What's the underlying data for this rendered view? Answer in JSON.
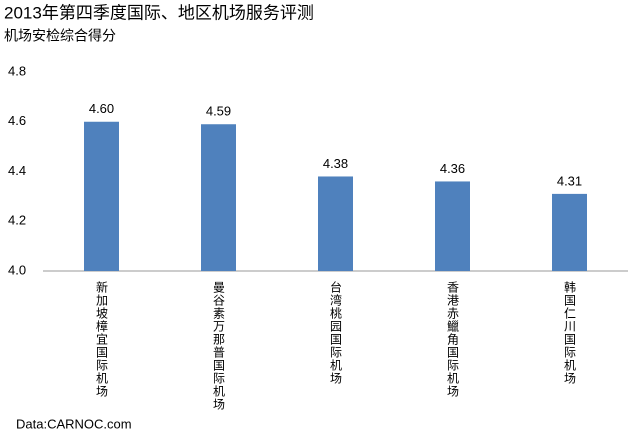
{
  "chart_data": {
    "type": "bar",
    "title": "2013年第四季度国际、地区机场服务评测",
    "subtitle": "机场安检综合得分",
    "categories": [
      "新加坡樟宜国际机场",
      "曼谷素万那普国际机场",
      "台湾桃园国际机场",
      "香港赤鱲角国际机场",
      "韩国仁川国际机场"
    ],
    "values": [
      4.6,
      4.59,
      4.38,
      4.36,
      4.31
    ],
    "value_labels": [
      "4.60",
      "4.59",
      "4.38",
      "4.36",
      "4.31"
    ],
    "color": "#4f81bd",
    "ylim": [
      4.0,
      4.8
    ],
    "yticks": [
      {
        "value": 4.0,
        "label": "4.0"
      },
      4.2,
      4.4,
      4.6,
      {
        "value": 4.8,
        "label": "4.8"
      }
    ],
    "grid": false,
    "source": "Data:CARNOC.com"
  }
}
